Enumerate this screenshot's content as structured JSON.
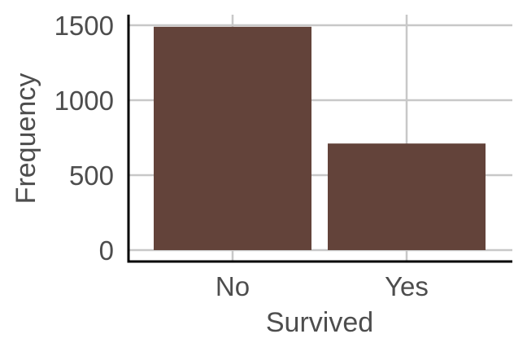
{
  "chart_data": {
    "type": "bar",
    "categories": [
      "No",
      "Yes"
    ],
    "values": [
      1490,
      711
    ],
    "title": "",
    "xlabel": "Survived",
    "ylabel": "Frequency",
    "ylim": [
      0,
      1600
    ],
    "yticks": [
      0,
      500,
      1000,
      1500
    ],
    "grid": true,
    "legend": "none"
  },
  "colors": {
    "bar": "#63433a",
    "grid": "#c8c8c8",
    "axis": "#000000",
    "text": "#4d4d4d"
  }
}
